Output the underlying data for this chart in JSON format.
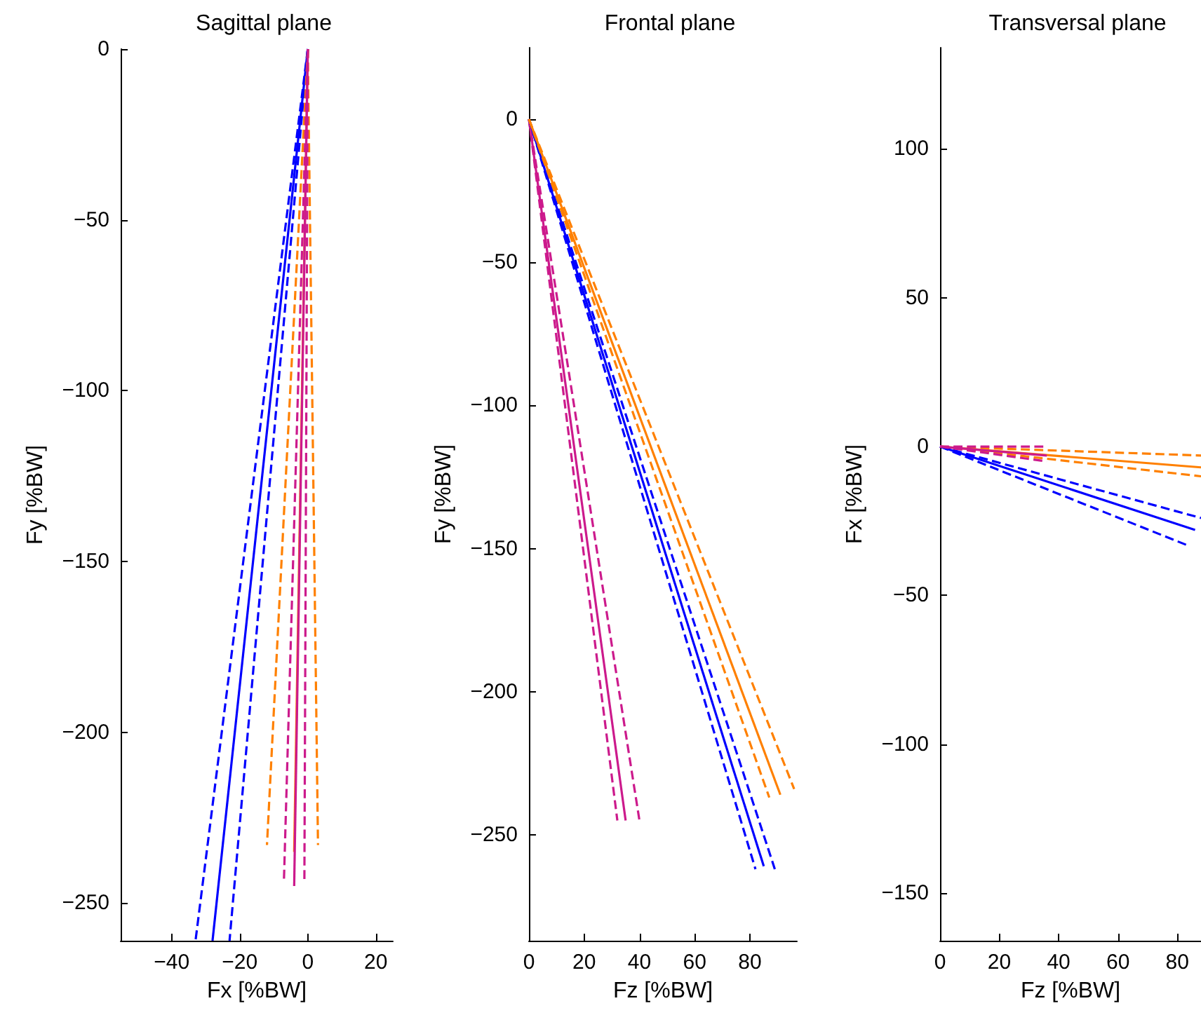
{
  "chart_data": [
    {
      "type": "line",
      "title": "Sagittal plane",
      "xlabel": "Fx [%BW]",
      "ylabel": "Fy [%BW]",
      "xlim": [
        -55,
        25
      ],
      "ylim": [
        -261,
        0
      ],
      "xticks": [
        -40,
        -20,
        0,
        20
      ],
      "yticks": [
        -250,
        -200,
        -150,
        -100,
        -50,
        0
      ],
      "grid": false,
      "marker": "none",
      "series": [
        {
          "color": "#0000ff",
          "line_style": "solid",
          "x": [
            0,
            -28
          ],
          "values": [
            0,
            -261
          ]
        },
        {
          "color": "#0000ff",
          "line_style": "dashed",
          "x": [
            0,
            -33
          ],
          "values": [
            0,
            -261
          ]
        },
        {
          "color": "#0000ff",
          "line_style": "dashed",
          "x": [
            0,
            -23
          ],
          "values": [
            0,
            -261
          ]
        },
        {
          "color": "#ff8000",
          "line_style": "solid",
          "x": [
            0,
            -4
          ],
          "values": [
            0,
            -235
          ]
        },
        {
          "color": "#ff8000",
          "line_style": "dashed",
          "x": [
            0,
            -12
          ],
          "values": [
            0,
            -233
          ]
        },
        {
          "color": "#ff8000",
          "line_style": "dashed",
          "x": [
            0,
            3
          ],
          "values": [
            0,
            -233
          ]
        },
        {
          "color": "#cc1a8c",
          "line_style": "solid",
          "x": [
            0,
            -4
          ],
          "values": [
            0,
            -245
          ]
        },
        {
          "color": "#cc1a8c",
          "line_style": "dashed",
          "x": [
            0,
            -7
          ],
          "values": [
            0,
            -243
          ]
        },
        {
          "color": "#cc1a8c",
          "line_style": "dashed",
          "x": [
            0,
            -1
          ],
          "values": [
            0,
            -243
          ]
        }
      ]
    },
    {
      "type": "line",
      "title": "Frontal plane",
      "xlabel": "Fz [%BW]",
      "ylabel": "Fy [%BW]",
      "xlim": [
        0,
        97
      ],
      "ylim": [
        -287,
        25
      ],
      "xticks": [
        0,
        20,
        40,
        60,
        80
      ],
      "yticks": [
        -250,
        -200,
        -150,
        -100,
        -50,
        0
      ],
      "grid": false,
      "marker": "none",
      "series": [
        {
          "color": "#cc1a8c",
          "line_style": "solid",
          "x": [
            0,
            35
          ],
          "values": [
            0,
            -245
          ]
        },
        {
          "color": "#cc1a8c",
          "line_style": "dashed",
          "x": [
            0,
            32
          ],
          "values": [
            0,
            -245
          ]
        },
        {
          "color": "#cc1a8c",
          "line_style": "dashed",
          "x": [
            0,
            40
          ],
          "values": [
            0,
            -245
          ]
        },
        {
          "color": "#0000ff",
          "line_style": "solid",
          "x": [
            0,
            85
          ],
          "values": [
            0,
            -261
          ]
        },
        {
          "color": "#0000ff",
          "line_style": "dashed",
          "x": [
            0,
            82
          ],
          "values": [
            0,
            -262
          ]
        },
        {
          "color": "#0000ff",
          "line_style": "dashed",
          "x": [
            0,
            89
          ],
          "values": [
            0,
            -262
          ]
        },
        {
          "color": "#ff8000",
          "line_style": "solid",
          "x": [
            0,
            91
          ],
          "values": [
            0,
            -236
          ]
        },
        {
          "color": "#ff8000",
          "line_style": "dashed",
          "x": [
            0,
            87
          ],
          "values": [
            0,
            -237
          ]
        },
        {
          "color": "#ff8000",
          "line_style": "dashed",
          "x": [
            0,
            96
          ],
          "values": [
            0,
            -234
          ]
        }
      ]
    },
    {
      "type": "line",
      "title": "Transversal plane",
      "xlabel": "Fz [%BW]",
      "ylabel": "Fx [%BW]",
      "xlim": [
        0,
        88
      ],
      "ylim": [
        -166,
        134
      ],
      "xticks": [
        0,
        20,
        40,
        60,
        80
      ],
      "yticks": [
        -150,
        -100,
        -50,
        0,
        50,
        100
      ],
      "grid": false,
      "marker": "none",
      "series": [
        {
          "color": "#ff8000",
          "line_style": "solid",
          "x": [
            0,
            88
          ],
          "values": [
            0,
            -7
          ]
        },
        {
          "color": "#ff8000",
          "line_style": "dashed",
          "x": [
            0,
            88
          ],
          "values": [
            0,
            -3
          ]
        },
        {
          "color": "#ff8000",
          "line_style": "dashed",
          "x": [
            0,
            88
          ],
          "values": [
            0,
            -10
          ]
        },
        {
          "color": "#0000ff",
          "line_style": "solid",
          "x": [
            0,
            86
          ],
          "values": [
            0,
            -28
          ]
        },
        {
          "color": "#0000ff",
          "line_style": "dashed",
          "x": [
            0,
            88
          ],
          "values": [
            0,
            -24
          ]
        },
        {
          "color": "#0000ff",
          "line_style": "dashed",
          "x": [
            0,
            83
          ],
          "values": [
            0,
            -33
          ]
        },
        {
          "color": "#cc1a8c",
          "line_style": "solid",
          "x": [
            0,
            36
          ],
          "values": [
            0,
            -3
          ]
        },
        {
          "color": "#cc1a8c",
          "line_style": "dashed",
          "x": [
            0,
            36
          ],
          "values": [
            0,
            0
          ]
        },
        {
          "color": "#cc1a8c",
          "line_style": "dashed",
          "x": [
            0,
            36
          ],
          "values": [
            0,
            -5
          ]
        }
      ]
    }
  ]
}
